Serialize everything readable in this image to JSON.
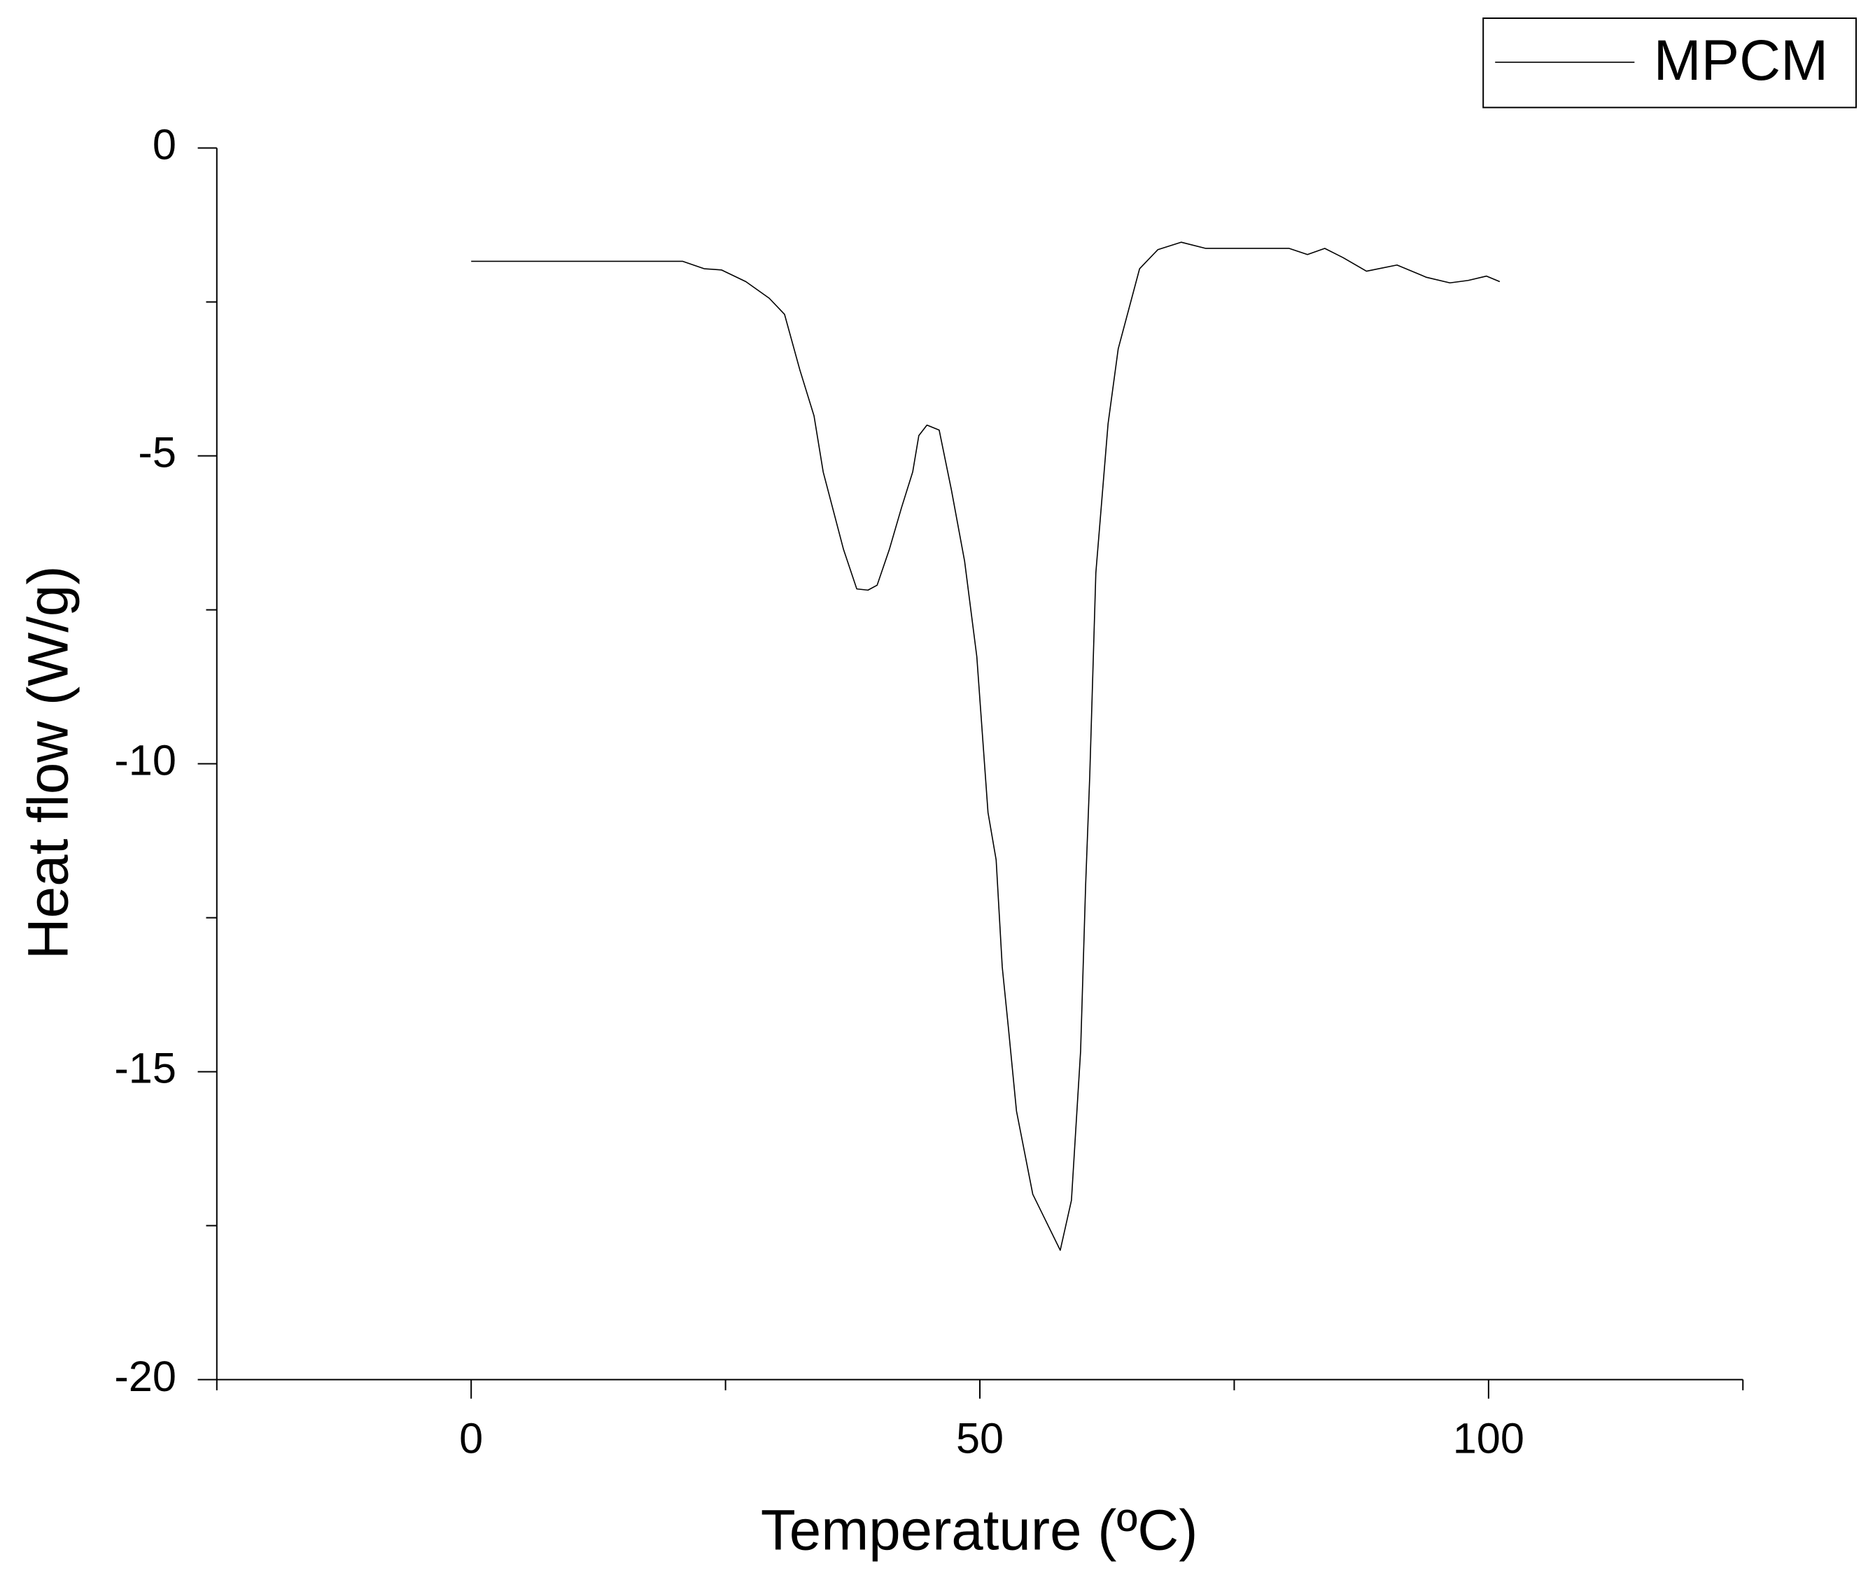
{
  "chart_data": {
    "type": "line",
    "xlabel": "Temperature (ºC)",
    "ylabel": "Heat flow (W/g)",
    "xlim": [
      -25,
      125
    ],
    "xticks": [
      0,
      50,
      100
    ],
    "x_minor_ticks": [
      -25,
      25,
      75,
      125
    ],
    "ylim": [
      -20,
      0
    ],
    "yticks": [
      0,
      -5,
      -10,
      -15,
      -20
    ],
    "y_minor_ticks": [
      -2.5,
      -7.5,
      -12.5,
      -17.5
    ],
    "grid": false,
    "legend": "top-right",
    "x": [
      0,
      20.8,
      22.9,
      24.6,
      27,
      29.3,
      30.8,
      32.3,
      33.7,
      34.6,
      36.6,
      37.9,
      39,
      39.9,
      41.1,
      42.3,
      43.4,
      44,
      44.8,
      46,
      47.2,
      48.5,
      49.7,
      50.8,
      51.6,
      52.2,
      52.8,
      53.6,
      55.2,
      57.9,
      59.0,
      59.9,
      60.4,
      60.8,
      61.4,
      62.6,
      63.6,
      65.7,
      67.5,
      69.8,
      72.2,
      80.4,
      82.2,
      83.9,
      85.7,
      88,
      91,
      93.9,
      96.2,
      98,
      99.8,
      101.1
    ],
    "series": [
      {
        "name": "MPCM",
        "color": "#000000",
        "values": [
          -1.84,
          -1.84,
          -1.96,
          -1.98,
          -2.17,
          -2.44,
          -2.7,
          -3.6,
          -4.35,
          -5.26,
          -6.52,
          -7.16,
          -7.18,
          -7.1,
          -6.52,
          -5.84,
          -5.26,
          -4.67,
          -4.5,
          -4.58,
          -5.55,
          -6.71,
          -8.26,
          -10.79,
          -11.56,
          -13.3,
          -14.28,
          -15.64,
          -16.99,
          -17.9,
          -17.09,
          -14.67,
          -11.95,
          -10.2,
          -6.9,
          -4.48,
          -3.26,
          -1.96,
          -1.65,
          -1.53,
          -1.63,
          -1.63,
          -1.73,
          -1.63,
          -1.78,
          -2.0,
          -1.9,
          -2.1,
          -2.19,
          -2.15,
          -2.08,
          -2.17
        ]
      }
    ]
  }
}
